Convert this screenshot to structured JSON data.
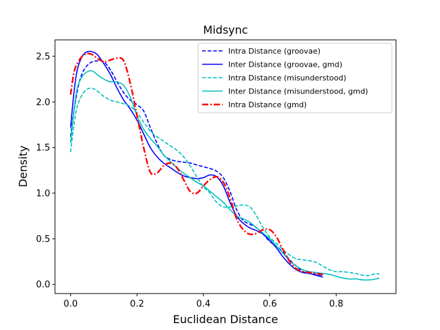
{
  "chart_data": {
    "type": "line",
    "title": "Midsync",
    "xlabel": "Euclidean Distance",
    "ylabel": "Density",
    "xlim": [
      -0.047,
      0.98
    ],
    "ylim": [
      -0.1,
      2.68
    ],
    "xticks": [
      0.0,
      0.2,
      0.4,
      0.6,
      0.8
    ],
    "xtick_labels": [
      "0.0",
      "0.2",
      "0.4",
      "0.6",
      "0.8"
    ],
    "yticks": [
      0.0,
      0.5,
      1.0,
      1.5,
      2.0,
      2.5
    ],
    "ytick_labels": [
      "0.0",
      "0.5",
      "1.0",
      "1.5",
      "2.0",
      "2.5"
    ],
    "grid": false,
    "legend_position": "top-right",
    "series": [
      {
        "name": "Intra Distance (groovae)",
        "color": "#0000ff",
        "dash": "dashed",
        "x": [
          0.0,
          0.01,
          0.025,
          0.04,
          0.06,
          0.08,
          0.1,
          0.12,
          0.14,
          0.16,
          0.18,
          0.2,
          0.22,
          0.24,
          0.26,
          0.28,
          0.3,
          0.32,
          0.34,
          0.36,
          0.38,
          0.4,
          0.42,
          0.44,
          0.46,
          0.48,
          0.5,
          0.52,
          0.54,
          0.56,
          0.58,
          0.6,
          0.62,
          0.64,
          0.66,
          0.68,
          0.7,
          0.72,
          0.74,
          0.76
        ],
        "y": [
          1.62,
          1.9,
          2.2,
          2.35,
          2.43,
          2.45,
          2.44,
          2.35,
          2.22,
          2.1,
          2.02,
          1.97,
          1.9,
          1.72,
          1.55,
          1.42,
          1.37,
          1.35,
          1.34,
          1.33,
          1.31,
          1.29,
          1.27,
          1.24,
          1.17,
          1.02,
          0.82,
          0.7,
          0.66,
          0.62,
          0.55,
          0.47,
          0.42,
          0.35,
          0.27,
          0.2,
          0.14,
          0.12,
          0.11,
          0.1
        ]
      },
      {
        "name": "Inter Distance (groovae, gmd)",
        "color": "#0000ff",
        "dash": "solid",
        "x": [
          0.0,
          0.01,
          0.02,
          0.035,
          0.05,
          0.065,
          0.08,
          0.1,
          0.12,
          0.14,
          0.16,
          0.18,
          0.2,
          0.22,
          0.24,
          0.26,
          0.28,
          0.3,
          0.32,
          0.34,
          0.36,
          0.38,
          0.4,
          0.42,
          0.44,
          0.46,
          0.48,
          0.5,
          0.52,
          0.54,
          0.56,
          0.58,
          0.6,
          0.62,
          0.64,
          0.66,
          0.68,
          0.7,
          0.72,
          0.74,
          0.76
        ],
        "y": [
          1.72,
          2.1,
          2.35,
          2.5,
          2.55,
          2.55,
          2.52,
          2.42,
          2.3,
          2.15,
          2.02,
          1.92,
          1.8,
          1.65,
          1.5,
          1.4,
          1.33,
          1.28,
          1.23,
          1.19,
          1.17,
          1.16,
          1.17,
          1.2,
          1.18,
          1.08,
          0.9,
          0.75,
          0.67,
          0.62,
          0.59,
          0.55,
          0.48,
          0.4,
          0.3,
          0.22,
          0.16,
          0.13,
          0.12,
          0.1,
          0.08
        ]
      },
      {
        "name": "Intra Distance (misunderstood)",
        "color": "#00bfbf",
        "dash": "dashed",
        "x": [
          0.0,
          0.01,
          0.02,
          0.035,
          0.05,
          0.065,
          0.08,
          0.1,
          0.12,
          0.14,
          0.16,
          0.18,
          0.2,
          0.22,
          0.24,
          0.26,
          0.28,
          0.3,
          0.32,
          0.34,
          0.36,
          0.38,
          0.4,
          0.42,
          0.44,
          0.46,
          0.48,
          0.5,
          0.52,
          0.54,
          0.56,
          0.58,
          0.6,
          0.62,
          0.64,
          0.66,
          0.68,
          0.7,
          0.72,
          0.74,
          0.76,
          0.78,
          0.8,
          0.82,
          0.84,
          0.86,
          0.88,
          0.9,
          0.92,
          0.93
        ],
        "y": [
          1.45,
          1.75,
          1.95,
          2.08,
          2.14,
          2.15,
          2.12,
          2.06,
          2.02,
          2.0,
          1.98,
          1.95,
          1.88,
          1.78,
          1.68,
          1.62,
          1.57,
          1.52,
          1.47,
          1.4,
          1.3,
          1.18,
          1.07,
          1.0,
          0.9,
          0.85,
          0.85,
          0.86,
          0.87,
          0.85,
          0.75,
          0.62,
          0.52,
          0.45,
          0.38,
          0.32,
          0.28,
          0.27,
          0.26,
          0.24,
          0.2,
          0.16,
          0.14,
          0.14,
          0.13,
          0.12,
          0.1,
          0.1,
          0.12,
          0.11
        ]
      },
      {
        "name": "Inter Distance (misunderstood, gmd)",
        "color": "#00bfbf",
        "dash": "solid",
        "x": [
          0.0,
          0.01,
          0.02,
          0.035,
          0.05,
          0.065,
          0.08,
          0.1,
          0.12,
          0.14,
          0.16,
          0.18,
          0.2,
          0.22,
          0.24,
          0.26,
          0.28,
          0.3,
          0.32,
          0.34,
          0.36,
          0.38,
          0.4,
          0.42,
          0.44,
          0.46,
          0.48,
          0.5,
          0.52,
          0.54,
          0.56,
          0.58,
          0.6,
          0.62,
          0.64,
          0.66,
          0.68,
          0.7,
          0.72,
          0.74,
          0.76,
          0.78,
          0.8,
          0.82,
          0.84,
          0.86,
          0.88,
          0.9,
          0.92,
          0.93
        ],
        "y": [
          1.55,
          1.9,
          2.15,
          2.28,
          2.33,
          2.34,
          2.3,
          2.25,
          2.22,
          2.22,
          2.18,
          2.05,
          1.85,
          1.7,
          1.6,
          1.52,
          1.42,
          1.35,
          1.28,
          1.22,
          1.17,
          1.12,
          1.08,
          1.02,
          0.96,
          0.9,
          0.82,
          0.75,
          0.72,
          0.68,
          0.62,
          0.56,
          0.5,
          0.42,
          0.34,
          0.26,
          0.2,
          0.16,
          0.14,
          0.13,
          0.12,
          0.11,
          0.09,
          0.07,
          0.06,
          0.06,
          0.05,
          0.05,
          0.06,
          0.07
        ]
      },
      {
        "name": "Intra Distance (gmd)",
        "color": "#ff0000",
        "dash": "dashdot",
        "x": [
          0.0,
          0.01,
          0.02,
          0.035,
          0.05,
          0.065,
          0.08,
          0.1,
          0.12,
          0.14,
          0.16,
          0.18,
          0.2,
          0.22,
          0.24,
          0.26,
          0.28,
          0.3,
          0.32,
          0.34,
          0.36,
          0.38,
          0.4,
          0.42,
          0.44,
          0.46,
          0.48,
          0.5,
          0.52,
          0.54,
          0.56,
          0.58,
          0.6,
          0.62,
          0.64,
          0.66,
          0.68,
          0.7,
          0.72,
          0.74,
          0.76
        ],
        "y": [
          2.08,
          2.32,
          2.42,
          2.5,
          2.53,
          2.52,
          2.48,
          2.44,
          2.46,
          2.48,
          2.45,
          2.2,
          1.85,
          1.5,
          1.23,
          1.22,
          1.3,
          1.33,
          1.28,
          1.15,
          1.02,
          1.0,
          1.08,
          1.15,
          1.18,
          1.12,
          0.95,
          0.72,
          0.6,
          0.55,
          0.56,
          0.6,
          0.6,
          0.52,
          0.38,
          0.25,
          0.17,
          0.14,
          0.13,
          0.12,
          0.11
        ]
      }
    ]
  }
}
